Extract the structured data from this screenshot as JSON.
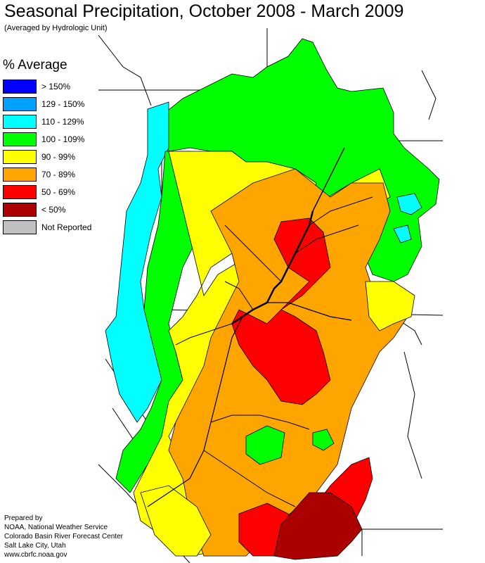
{
  "header": {
    "title": "Seasonal Precipitation, October 2008 - March 2009",
    "subtitle": "(Averaged by Hydrologic Unit)"
  },
  "legend": {
    "title": "% Average",
    "items": [
      {
        "label": "> 150%",
        "color": "#0000ff"
      },
      {
        "label": "129 - 150%",
        "color": "#00a2ff"
      },
      {
        "label": "110 - 129%",
        "color": "#00ffff"
      },
      {
        "label": "100 - 109%",
        "color": "#00ff00"
      },
      {
        "label": "90 - 99%",
        "color": "#ffff00"
      },
      {
        "label": "70 - 89%",
        "color": "#ffa500"
      },
      {
        "label": "50 - 69%",
        "color": "#ff0000"
      },
      {
        "label": "< 50%",
        "color": "#aa0000"
      },
      {
        "label": "Not Reported",
        "color": "#c0c0c0"
      }
    ]
  },
  "credits": [
    "Prepared by",
    "NOAA, National Weather Service",
    "Colorado Basin River Forecast Center",
    "Salt Lake City, Utah",
    "www.cbrfc.noaa.gov"
  ]
}
